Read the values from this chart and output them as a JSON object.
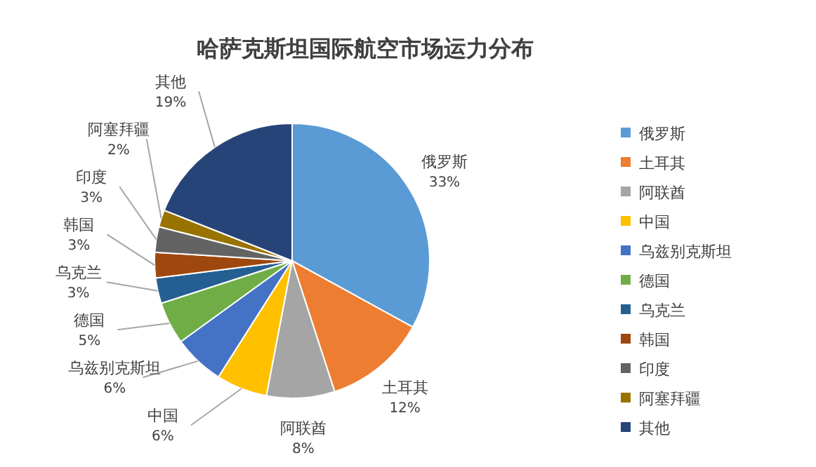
{
  "chart_data": {
    "type": "pie",
    "title": "哈萨克斯坦国际航空市场运力分布",
    "categories": [
      "俄罗斯",
      "土耳其",
      "阿联酋",
      "中国",
      "乌兹别克斯坦",
      "德国",
      "乌克兰",
      "韩国",
      "印度",
      "阿塞拜疆",
      "其他"
    ],
    "values": [
      33,
      12,
      8,
      6,
      6,
      5,
      3,
      3,
      3,
      2,
      19
    ],
    "value_labels": [
      "33%",
      "12%",
      "8%",
      "6%",
      "6%",
      "5%",
      "3%",
      "3%",
      "3%",
      "2%",
      "19%"
    ],
    "colors": [
      "#5b9bd5",
      "#ed7d31",
      "#a5a5a5",
      "#ffc000",
      "#4472c4",
      "#70ad47",
      "#255e91",
      "#9e480e",
      "#636363",
      "#997300",
      "#264478"
    ],
    "legend": "right"
  }
}
